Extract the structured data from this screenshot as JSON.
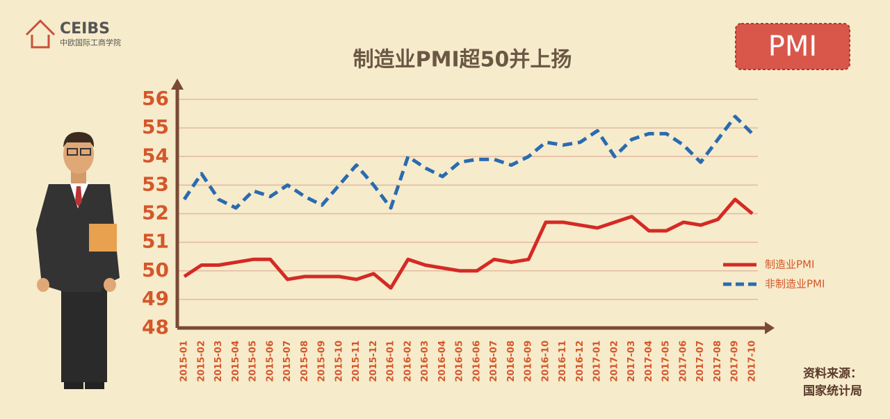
{
  "logo": {
    "name": "CEIBS",
    "subtitle": "中欧国际工商学院"
  },
  "badge": "PMI",
  "source_label": "资料来源：",
  "source_name": "国家统计局",
  "chart_data": {
    "type": "line",
    "title": "制造业PMI超50并上扬",
    "categories": [
      "2015-01",
      "2015-02",
      "2015-03",
      "2015-04",
      "2015-05",
      "2015-06",
      "2015-07",
      "2015-08",
      "2015-09",
      "2015-10",
      "2015-11",
      "2015-12",
      "2016-01",
      "2016-02",
      "2016-03",
      "2016-04",
      "2016-05",
      "2016-06",
      "2016-07",
      "2016-08",
      "2016-09",
      "2016-10",
      "2016-11",
      "2016-12",
      "2017-01",
      "2017-02",
      "2017-03",
      "2017-04",
      "2017-05",
      "2017-06",
      "2017-07",
      "2017-08",
      "2017-09",
      "2017-10"
    ],
    "series": [
      {
        "name": "制造业PMI",
        "color": "#d42a25",
        "dashed": false,
        "values": [
          49.8,
          50.2,
          50.2,
          50.3,
          50.4,
          50.4,
          49.7,
          49.8,
          49.8,
          49.8,
          49.7,
          49.9,
          49.4,
          50.4,
          50.2,
          50.1,
          50.0,
          50.0,
          50.4,
          50.3,
          50.4,
          51.7,
          51.7,
          51.6,
          51.5,
          51.7,
          51.9,
          51.4,
          51.4,
          51.7,
          51.6,
          51.8,
          52.5,
          52.0
        ]
      },
      {
        "name": "非制造业PMI",
        "color": "#2a6bb0",
        "dashed": true,
        "values": [
          52.5,
          53.4,
          52.5,
          52.2,
          52.8,
          52.6,
          53.0,
          52.6,
          52.3,
          53.0,
          53.7,
          53.0,
          52.2,
          54.0,
          53.6,
          53.3,
          53.8,
          53.9,
          53.9,
          53.7,
          54.0,
          54.5,
          54.4,
          54.5,
          54.9,
          54.0,
          54.6,
          54.8,
          54.8,
          54.4,
          53.8,
          54.6,
          55.4,
          54.8
        ]
      }
    ],
    "ylim": [
      48,
      56
    ],
    "yticks": [
      48,
      49,
      50,
      51,
      52,
      53,
      54,
      55,
      56
    ],
    "grid": true,
    "legend": "right"
  }
}
